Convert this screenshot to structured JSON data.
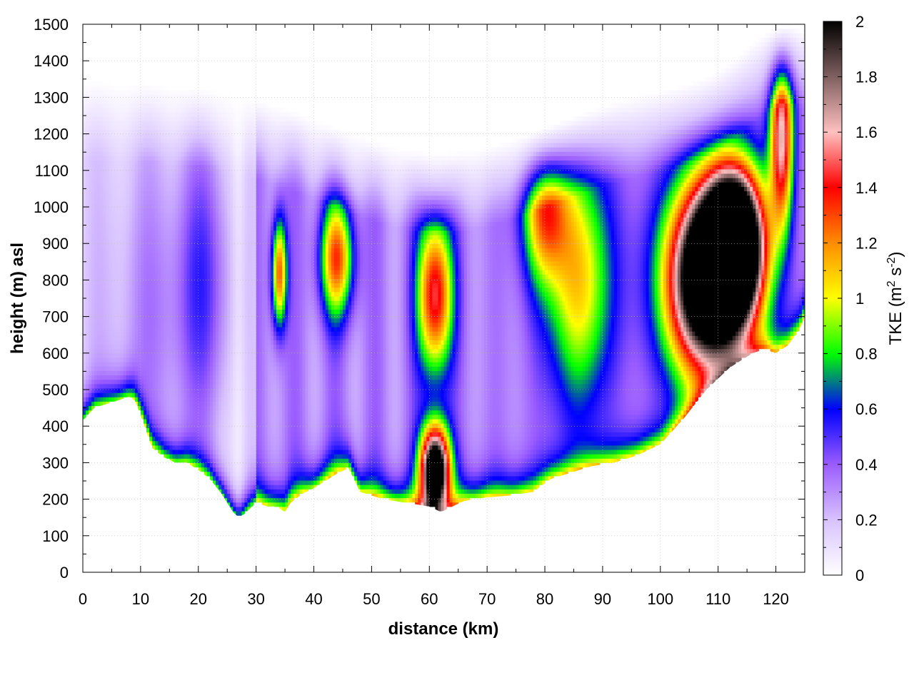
{
  "chart_data": {
    "type": "heatmap",
    "title": "",
    "xlabel": "distance (km)",
    "ylabel": "height (m) asl",
    "xlim": [
      0,
      125
    ],
    "ylim": [
      0,
      1500
    ],
    "x_ticks": [
      "0",
      "10",
      "20",
      "30",
      "40",
      "50",
      "60",
      "70",
      "80",
      "90",
      "100",
      "110",
      "120"
    ],
    "y_ticks": [
      "0",
      "100",
      "200",
      "300",
      "400",
      "500",
      "600",
      "700",
      "800",
      "900",
      "1000",
      "1100",
      "1200",
      "1300",
      "1400",
      "1500"
    ],
    "colorbar": {
      "label": "TKE (m",
      "label_sup1": "2",
      "label_mid": " s",
      "label_sup2": "-2",
      "label_end": ")",
      "range": [
        0,
        2
      ],
      "ticks": [
        "0",
        "0.2",
        "0.4",
        "0.6",
        "0.8",
        "1",
        "1.2",
        "1.4",
        "1.6",
        "1.8",
        "2"
      ],
      "colors": [
        "#ffffff",
        "#d8c2ff",
        "#9a5cff",
        "#0000ff",
        "#00ff00",
        "#ffff00",
        "#ff8c00",
        "#ff0000",
        "#ffc0c0",
        "#806060",
        "#000000"
      ]
    },
    "grid": true,
    "terrain_km": [
      0,
      2,
      5,
      8,
      9,
      10,
      12,
      14,
      16,
      18,
      20,
      22,
      24,
      26,
      27,
      28,
      29,
      30,
      31,
      32,
      33,
      34,
      35,
      36,
      38,
      40,
      42,
      44,
      46,
      48,
      50,
      52,
      54,
      56,
      58,
      60,
      62,
      64,
      66,
      68,
      70,
      74,
      78,
      81,
      84,
      86,
      88,
      92,
      96,
      100,
      104,
      108,
      112,
      116,
      118,
      120,
      122,
      124,
      125
    ],
    "terrain_m": [
      415,
      450,
      465,
      480,
      470,
      430,
      340,
      315,
      300,
      300,
      280,
      255,
      215,
      165,
      150,
      160,
      175,
      190,
      185,
      180,
      180,
      175,
      165,
      190,
      215,
      230,
      250,
      270,
      285,
      220,
      210,
      200,
      195,
      190,
      185,
      180,
      165,
      180,
      195,
      200,
      205,
      210,
      220,
      255,
      270,
      280,
      290,
      300,
      320,
      350,
      420,
      500,
      560,
      600,
      610,
      600,
      620,
      660,
      700
    ],
    "terrain_render_offset_m": 0,
    "features": [
      {
        "x": 12,
        "z": 700,
        "v": 0.18,
        "sx": 9,
        "sz": 500
      },
      {
        "x": 21,
        "z": 800,
        "v": 0.3,
        "sx": 5,
        "sz": 400
      },
      {
        "x": 34,
        "z": 820,
        "v": 1.0,
        "sx": 1.3,
        "sz": 150
      },
      {
        "x": 44,
        "z": 860,
        "v": 0.95,
        "sx": 3,
        "sz": 160
      },
      {
        "x": 61,
        "z": 760,
        "v": 1.2,
        "sx": 3,
        "sz": 220
      },
      {
        "x": 61,
        "z": 280,
        "v": 2.2,
        "sx": 2.5,
        "sz": 120
      },
      {
        "x": 80,
        "z": 1000,
        "v": 0.85,
        "sx": 4,
        "sz": 200
      },
      {
        "x": 86,
        "z": 800,
        "v": 0.75,
        "sx": 6,
        "sz": 350
      },
      {
        "x": 108,
        "z": 800,
        "v": 2.3,
        "sx": 7,
        "sz": 260
      },
      {
        "x": 113,
        "z": 900,
        "v": 2.4,
        "sx": 5,
        "sz": 200
      },
      {
        "x": 121,
        "z": 1200,
        "v": 1.3,
        "sx": 2,
        "sz": 250
      }
    ]
  }
}
